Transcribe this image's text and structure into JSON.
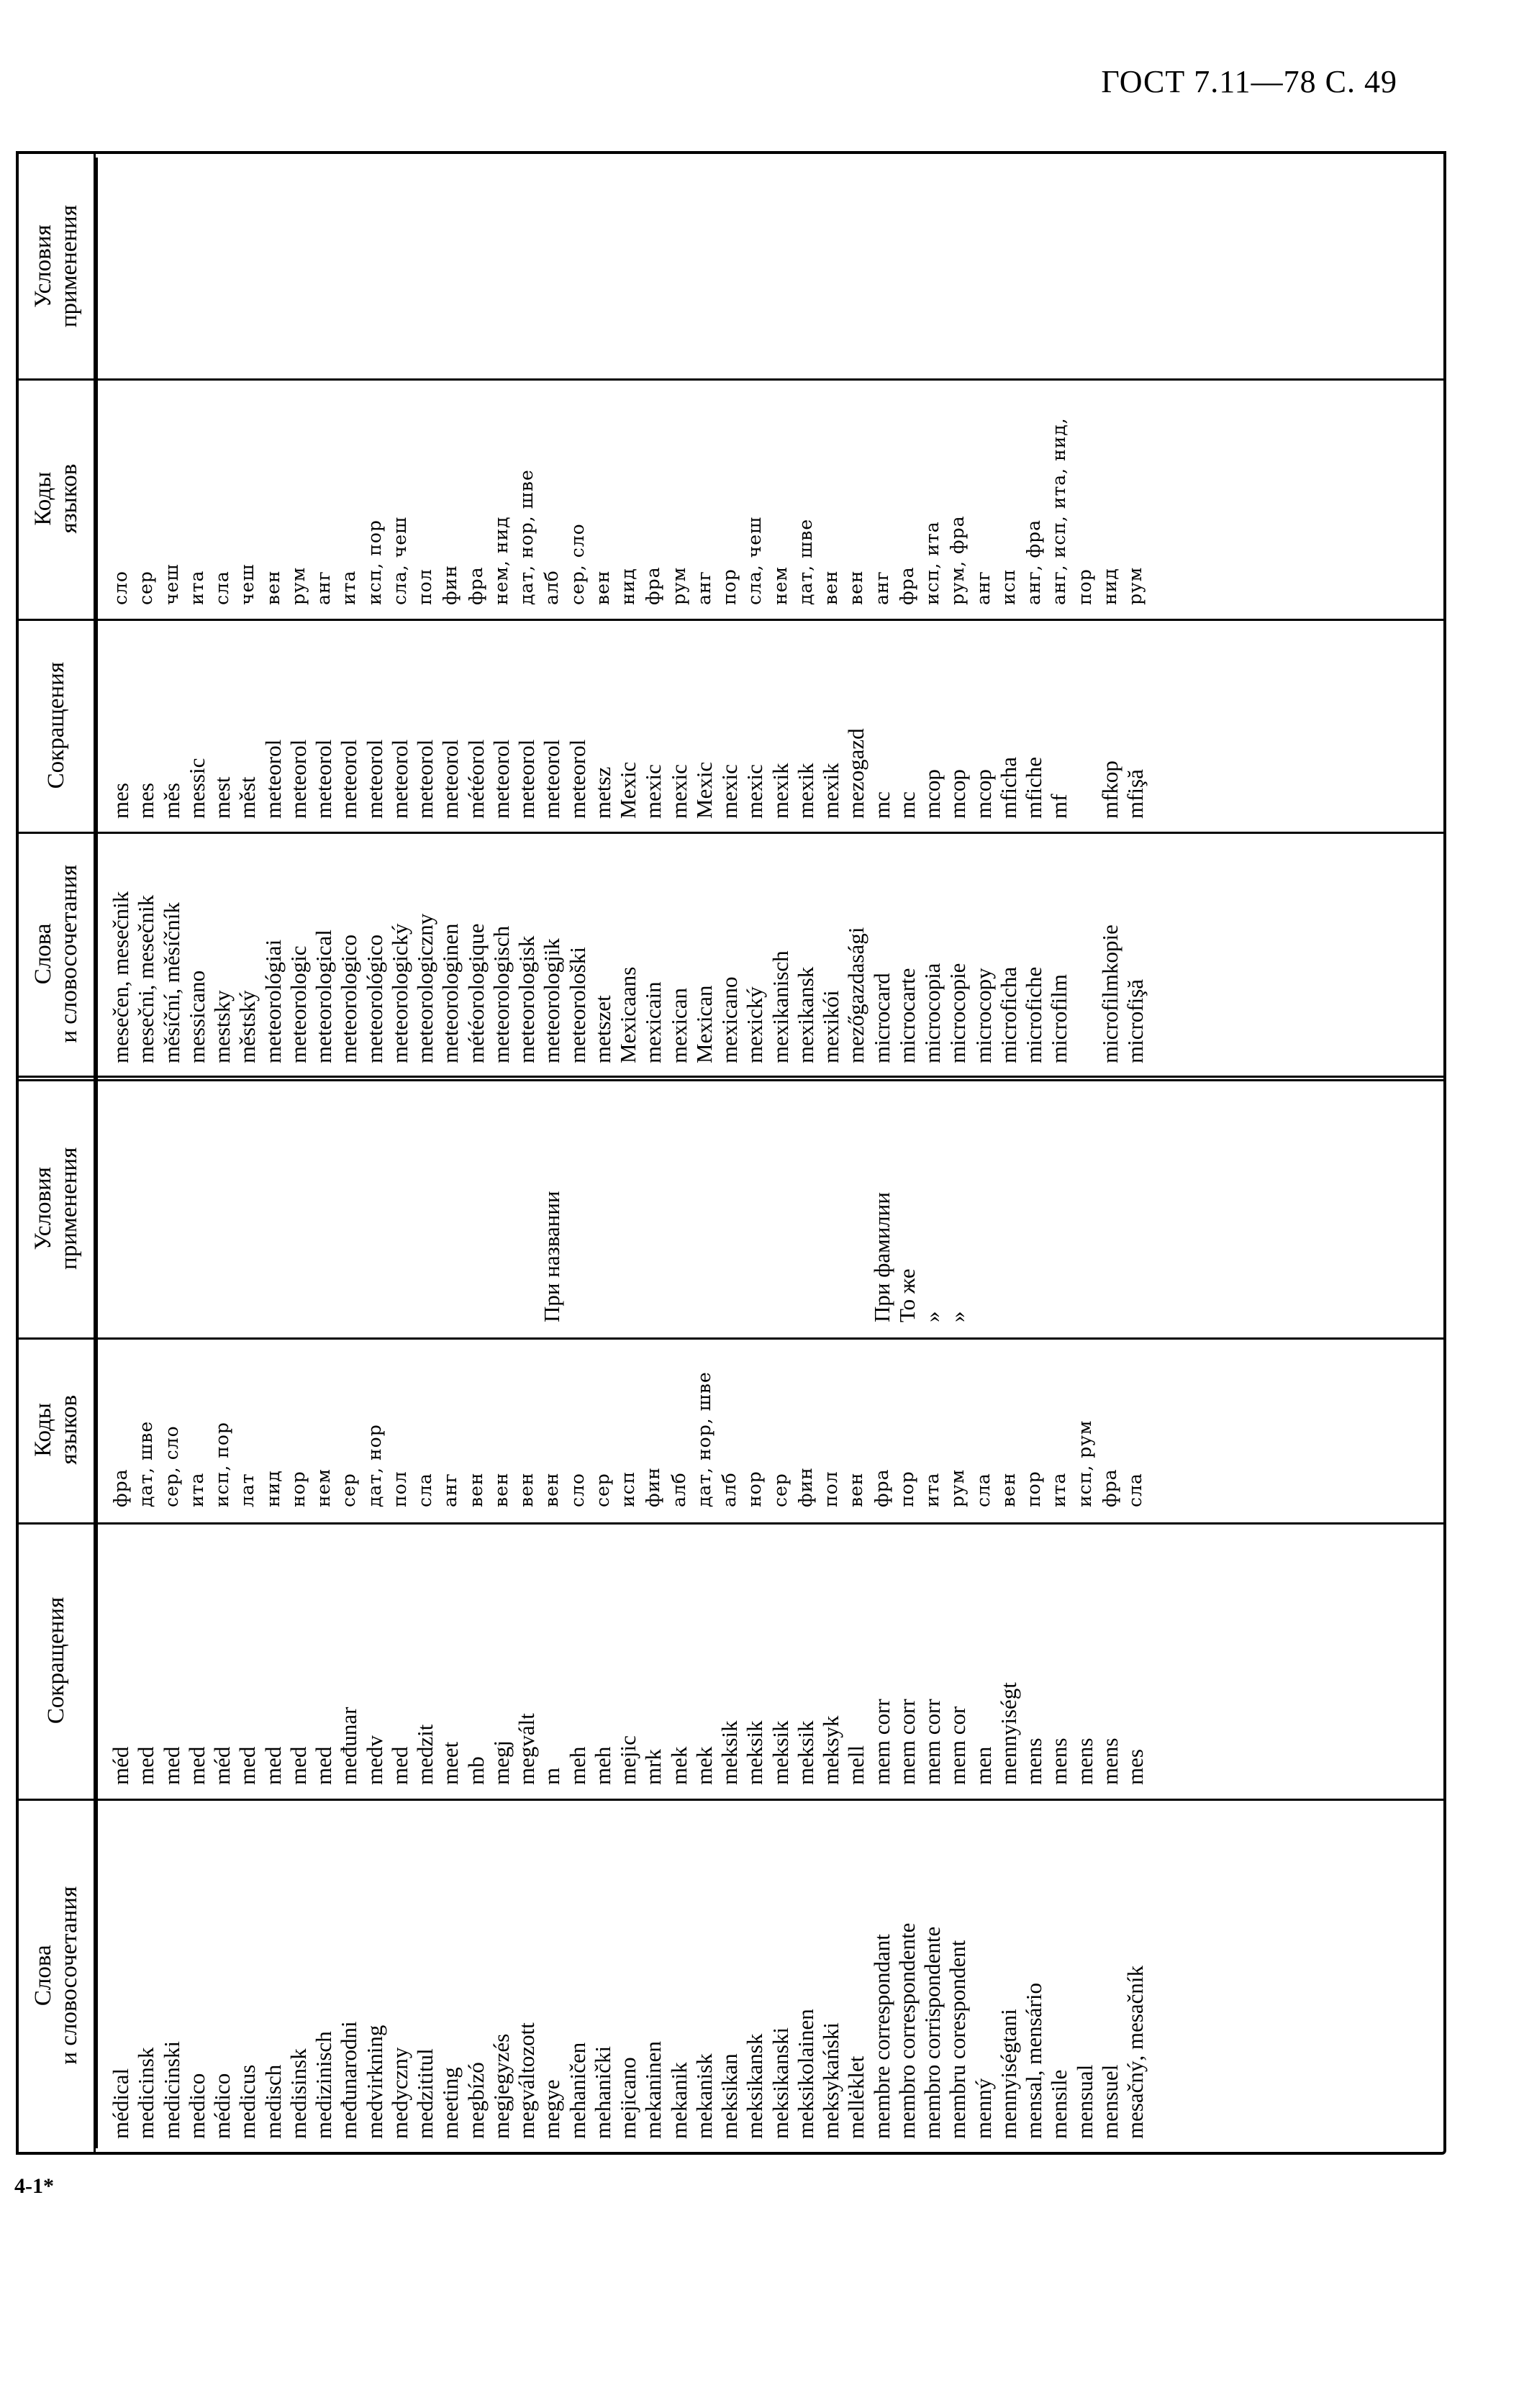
{
  "page_header": "ГОСТ 7.11—78 С. 49",
  "sheet_mark": "4-1*",
  "columns": [
    "Слова\nи словосочетания",
    "Сокращения",
    "Коды\nязыков",
    "Условия\nприменения"
  ],
  "left_rows": [
    {
      "word": "médical",
      "abbr": "méd",
      "codes": "фра",
      "cond": ""
    },
    {
      "word": "medicinsk",
      "abbr": "med",
      "codes": "дат, шве",
      "cond": ""
    },
    {
      "word": "medicinski",
      "abbr": "med",
      "codes": "сер, сло",
      "cond": ""
    },
    {
      "word": "medico",
      "abbr": "med",
      "codes": "ита",
      "cond": ""
    },
    {
      "word": "médico",
      "abbr": "méd",
      "codes": "исп, пор",
      "cond": ""
    },
    {
      "word": "medicus",
      "abbr": "med",
      "codes": "лат",
      "cond": ""
    },
    {
      "word": "medisch",
      "abbr": "med",
      "codes": "нид",
      "cond": ""
    },
    {
      "word": "medisinsk",
      "abbr": "med",
      "codes": "нор",
      "cond": ""
    },
    {
      "word": "medizinisch",
      "abbr": "med",
      "codes": "нем",
      "cond": ""
    },
    {
      "word": "međunarodni",
      "abbr": "međunar",
      "codes": "сер",
      "cond": ""
    },
    {
      "word": "medvirkning",
      "abbr": "medv",
      "codes": "дат, нор",
      "cond": ""
    },
    {
      "word": "medyczny",
      "abbr": "med",
      "codes": "пол",
      "cond": ""
    },
    {
      "word": "medzititul",
      "abbr": "medzit",
      "codes": "сла",
      "cond": ""
    },
    {
      "word": "meeting",
      "abbr": "meet",
      "codes": "анг",
      "cond": ""
    },
    {
      "word": "megbízó",
      "abbr": "mb",
      "codes": "вен",
      "cond": ""
    },
    {
      "word": "megjegyzés",
      "abbr": "megj",
      "codes": "вен",
      "cond": ""
    },
    {
      "word": "megváltozott",
      "abbr": "megvált",
      "codes": "вен",
      "cond": ""
    },
    {
      "word": "megye",
      "abbr": "m",
      "codes": "вен",
      "cond": "При названии"
    },
    {
      "word": "mehaničen",
      "abbr": "meh",
      "codes": "сло",
      "cond": ""
    },
    {
      "word": "mehanički",
      "abbr": "meh",
      "codes": "сер",
      "cond": ""
    },
    {
      "word": "mejicano",
      "abbr": "mejic",
      "codes": "исп",
      "cond": ""
    },
    {
      "word": "mekaninen",
      "abbr": "mrk",
      "codes": "фин",
      "cond": ""
    },
    {
      "word": "mekanik",
      "abbr": "mek",
      "codes": "алб",
      "cond": ""
    },
    {
      "word": "mekanisk",
      "abbr": "mek",
      "codes": "дат, нор, шве",
      "cond": ""
    },
    {
      "word": "meksikan",
      "abbr": "meksik",
      "codes": "алб",
      "cond": ""
    },
    {
      "word": "meksikansk",
      "abbr": "meksik",
      "codes": "нор",
      "cond": ""
    },
    {
      "word": "meksikanski",
      "abbr": "meksik",
      "codes": "сер",
      "cond": ""
    },
    {
      "word": "meksikolainen",
      "abbr": "meksik",
      "codes": "фин",
      "cond": ""
    },
    {
      "word": "meksykański",
      "abbr": "meksyk",
      "codes": "пол",
      "cond": ""
    },
    {
      "word": "mellėklet",
      "abbr": "mell",
      "codes": "вен",
      "cond": ""
    },
    {
      "word": "membre correspondant",
      "abbr": "mem corr",
      "codes": "фра",
      "cond": "При фамилии"
    },
    {
      "word": "membro correspondente",
      "abbr": "mem corr",
      "codes": "пор",
      "cond": "То же"
    },
    {
      "word": "membro corrispondente",
      "abbr": "mem corr",
      "codes": "ита",
      "cond": "»"
    },
    {
      "word": "membru corespondent",
      "abbr": "mem cor",
      "codes": "рум",
      "cond": "»"
    },
    {
      "word": "menný",
      "abbr": "men",
      "codes": "сла",
      "cond": ""
    },
    {
      "word": "mennyiségtani",
      "abbr": "mennyiségt",
      "codes": "вен",
      "cond": ""
    },
    {
      "word": "mensal, mensário",
      "abbr": "mens",
      "codes": "пор",
      "cond": ""
    },
    {
      "word": "mensile",
      "abbr": "mens",
      "codes": "ита",
      "cond": ""
    },
    {
      "word": "mensual",
      "abbr": "mens",
      "codes": "исп, рум",
      "cond": ""
    },
    {
      "word": "mensuel",
      "abbr": "mens",
      "codes": "фра",
      "cond": ""
    },
    {
      "word": "mesačný, mesačník",
      "abbr": "mes",
      "codes": "сла",
      "cond": ""
    }
  ],
  "right_rows": [
    {
      "word": "mesečen, mesečnik",
      "abbr": "mes",
      "codes": "сло",
      "cond": ""
    },
    {
      "word": "mesečni, mesečnik",
      "abbr": "mes",
      "codes": "сер",
      "cond": ""
    },
    {
      "word": "měsíční, měsíčník",
      "abbr": "měs",
      "codes": "чеш",
      "cond": ""
    },
    {
      "word": "messicano",
      "abbr": "messic",
      "codes": "ита",
      "cond": ""
    },
    {
      "word": "mestsky",
      "abbr": "mest",
      "codes": "сла",
      "cond": ""
    },
    {
      "word": "městský",
      "abbr": "měst",
      "codes": "чеш",
      "cond": ""
    },
    {
      "word": "meteorológiai",
      "abbr": "meteorol",
      "codes": "вен",
      "cond": ""
    },
    {
      "word": "meteorologic",
      "abbr": "meteorol",
      "codes": "рум",
      "cond": ""
    },
    {
      "word": "meteorological",
      "abbr": "meteorol",
      "codes": "анг",
      "cond": ""
    },
    {
      "word": "meteorologico",
      "abbr": "meteorol",
      "codes": "ита",
      "cond": ""
    },
    {
      "word": "meteorológico",
      "abbr": "meteorol",
      "codes": "исп, пор",
      "cond": ""
    },
    {
      "word": "meteorologický",
      "abbr": "meteorol",
      "codes": "сла, чеш",
      "cond": ""
    },
    {
      "word": "meteorologiczny",
      "abbr": "meteorol",
      "codes": "пол",
      "cond": ""
    },
    {
      "word": "meteorologinen",
      "abbr": "meteorol",
      "codes": "фин",
      "cond": ""
    },
    {
      "word": "météorologique",
      "abbr": "météorol",
      "codes": "фра",
      "cond": ""
    },
    {
      "word": "meteorologisch",
      "abbr": "meteorol",
      "codes": "нем, нид",
      "cond": ""
    },
    {
      "word": "meteorologisk",
      "abbr": "meteorol",
      "codes": "дат, нор, шве",
      "cond": ""
    },
    {
      "word": "meteorologjik",
      "abbr": "meteorol",
      "codes": "алб",
      "cond": ""
    },
    {
      "word": "meteorološki",
      "abbr": "meteorol",
      "codes": "сер, сло",
      "cond": ""
    },
    {
      "word": "metszet",
      "abbr": "metsz",
      "codes": "вен",
      "cond": ""
    },
    {
      "word": "Mexicaans",
      "abbr": "Mexic",
      "codes": "нид",
      "cond": ""
    },
    {
      "word": "mexicain",
      "abbr": "mexic",
      "codes": "фра",
      "cond": ""
    },
    {
      "word": "mexican",
      "abbr": "mexic",
      "codes": "рум",
      "cond": ""
    },
    {
      "word": "Mexican",
      "abbr": "Mexic",
      "codes": "анг",
      "cond": ""
    },
    {
      "word": "mexicano",
      "abbr": "mexic",
      "codes": "пор",
      "cond": ""
    },
    {
      "word": "mexický",
      "abbr": "mexic",
      "codes": "сла, чеш",
      "cond": ""
    },
    {
      "word": "mexikanisch",
      "abbr": "mexik",
      "codes": "нем",
      "cond": ""
    },
    {
      "word": "mexikansk",
      "abbr": "mexik",
      "codes": "дат, шве",
      "cond": ""
    },
    {
      "word": "mexikói",
      "abbr": "mexik",
      "codes": "вен",
      "cond": ""
    },
    {
      "word": "mezőgazdasági",
      "abbr": "mezogazd",
      "codes": "вен",
      "cond": ""
    },
    {
      "word": "microcard",
      "abbr": "mc",
      "codes": "анг",
      "cond": ""
    },
    {
      "word": "microcarte",
      "abbr": "mc",
      "codes": "фра",
      "cond": ""
    },
    {
      "word": "microcopia",
      "abbr": "mcop",
      "codes": "исп, ита",
      "cond": ""
    },
    {
      "word": "microcopie",
      "abbr": "mcop",
      "codes": "рум, фра",
      "cond": ""
    },
    {
      "word": "microcopy",
      "abbr": "mcop",
      "codes": "анг",
      "cond": ""
    },
    {
      "word": "microficha",
      "abbr": "mficha",
      "codes": "исп",
      "cond": ""
    },
    {
      "word": "microfiche",
      "abbr": "mfiche",
      "codes": "анг, фра",
      "cond": ""
    },
    {
      "word": "microfilm",
      "abbr": "mf",
      "codes": "анг, исп, ита, нид,\nпор",
      "cond": ""
    },
    {
      "word": "microfilmkopie",
      "abbr": "mfkop",
      "codes": "нид",
      "cond": ""
    },
    {
      "word": "microfişă",
      "abbr": "mfişă",
      "codes": "рум",
      "cond": ""
    }
  ]
}
